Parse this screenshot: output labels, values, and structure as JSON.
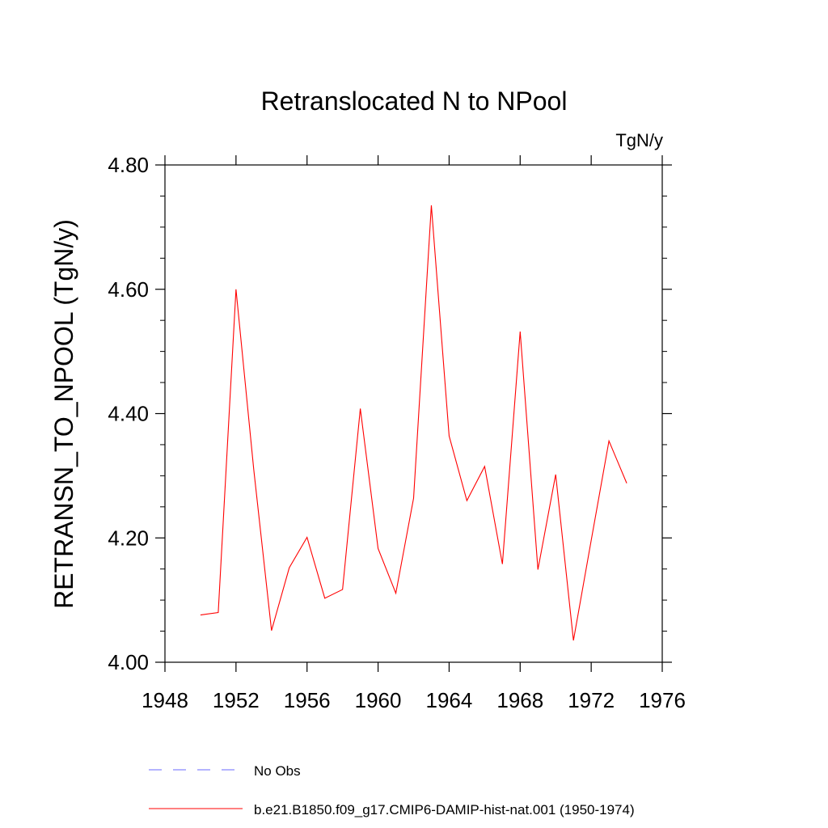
{
  "chart_data": {
    "type": "line",
    "title": "Retranslocated N to NPool",
    "units": "TgN/y",
    "ylabel": "RETRANSN_TO_NPOOL  (TgN/y)",
    "xlabel": "",
    "xlim": [
      1948,
      1976
    ],
    "ylim": [
      4.0,
      4.8
    ],
    "x_ticks": [
      1948,
      1952,
      1956,
      1960,
      1964,
      1968,
      1972,
      1976
    ],
    "x_tick_labels": [
      "1948",
      "1952",
      "1956",
      "1960",
      "1964",
      "1968",
      "1972",
      "1976"
    ],
    "y_ticks": [
      4.0,
      4.2,
      4.4,
      4.6,
      4.8
    ],
    "y_tick_labels": [
      "4.00",
      "4.20",
      "4.40",
      "4.60",
      "4.80"
    ],
    "grid": false,
    "legend_position": "bottom",
    "series": [
      {
        "name": "b.e21.B1850.f09_g17.CMIP6-DAMIP-hist-nat.001 (1950-1974)",
        "color": "#ff0000",
        "style": "solid",
        "x": [
          1950,
          1951,
          1952,
          1953,
          1954,
          1955,
          1956,
          1957,
          1958,
          1959,
          1960,
          1961,
          1962,
          1963,
          1964,
          1965,
          1966,
          1967,
          1968,
          1969,
          1970,
          1971,
          1972,
          1973,
          1974
        ],
        "y": [
          4.076,
          4.08,
          4.6,
          4.31,
          4.051,
          4.152,
          4.201,
          4.103,
          4.117,
          4.408,
          4.183,
          4.111,
          4.264,
          4.735,
          4.364,
          4.26,
          4.315,
          4.158,
          4.532,
          4.149,
          4.302,
          4.035,
          4.196,
          4.356,
          4.288
        ]
      }
    ],
    "legend": [
      {
        "label": "No Obs",
        "color": "#6a6aff",
        "style": "dashed"
      },
      {
        "label": "b.e21.B1850.f09_g17.CMIP6-DAMIP-hist-nat.001 (1950-1974)",
        "color": "#ff0000",
        "style": "solid"
      }
    ]
  }
}
